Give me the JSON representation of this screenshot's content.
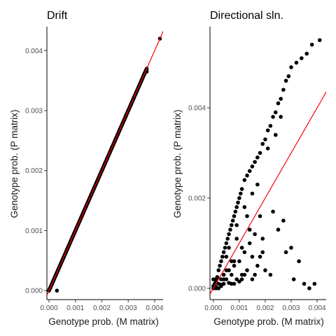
{
  "chart_data": [
    {
      "type": "scatter",
      "title": "Drift",
      "xlabel": "Genotype prob. (M matrix)",
      "ylabel": "Genotype prob. (P matrix)",
      "xlim": [
        -8e-05,
        0.00432
      ],
      "ylim": [
        -0.00015,
        0.0044
      ],
      "xticks": [
        "0.000",
        "0.001",
        "0.002",
        "0.003",
        "0.004"
      ],
      "yticks": [
        "0.000",
        "0.001",
        "0.002",
        "0.003",
        "0.004"
      ],
      "xtick_values": [
        0,
        0.001,
        0.002,
        0.003,
        0.004
      ],
      "ytick_values": [
        0,
        0.001,
        0.002,
        0.003,
        0.004
      ],
      "reference_line": {
        "type": "y=x",
        "color": "#ff0000"
      },
      "grid": false,
      "points": {
        "x": [
          0.0,
          2e-05,
          5e-05,
          0.0001,
          0.00015,
          0.0002,
          0.00025,
          0.0003,
          0.00035,
          0.0004,
          0.00045,
          0.0005,
          0.00055,
          0.0006,
          0.00065,
          0.0007,
          0.00075,
          0.0008,
          0.00085,
          0.0009,
          0.00095,
          0.001,
          0.00105,
          0.0011,
          0.00115,
          0.0012,
          0.00125,
          0.0013,
          0.00135,
          0.0014,
          0.00145,
          0.0015,
          0.00155,
          0.0016,
          0.00165,
          0.0017,
          0.00175,
          0.0018,
          0.00185,
          0.0019,
          0.00195,
          0.002,
          0.00205,
          0.0021,
          0.00215,
          0.0022,
          0.0023,
          0.0024,
          0.0025,
          0.00255,
          0.0026,
          0.0027,
          0.0028,
          0.00285,
          0.0029,
          0.003,
          0.0031,
          0.0032,
          0.0033,
          0.0034,
          0.0035,
          0.0036,
          0.0037,
          0.0042,
          0.0003
        ],
        "y": [
          0.0,
          2e-05,
          5e-05,
          0.0001,
          0.00015,
          0.0002,
          0.00025,
          0.0003,
          0.00035,
          0.0004,
          0.00045,
          0.0005,
          0.00055,
          0.0006,
          0.00065,
          0.0007,
          0.00075,
          0.0008,
          0.00085,
          0.0009,
          0.00095,
          0.001,
          0.00105,
          0.0011,
          0.00115,
          0.0012,
          0.00125,
          0.0013,
          0.00135,
          0.0014,
          0.00145,
          0.0015,
          0.00155,
          0.0016,
          0.00165,
          0.0017,
          0.00175,
          0.0018,
          0.00185,
          0.0019,
          0.00195,
          0.002,
          0.00205,
          0.0021,
          0.00215,
          0.0022,
          0.0023,
          0.0024,
          0.0025,
          0.00255,
          0.0026,
          0.0027,
          0.0028,
          0.00285,
          0.0029,
          0.003,
          0.0031,
          0.0032,
          0.0033,
          0.0034,
          0.0035,
          0.0036,
          0.00365,
          0.0042,
          0.0
        ]
      }
    },
    {
      "type": "scatter",
      "title": "Directional sln.",
      "xlabel": "Genotype prob. (M matrix)",
      "ylabel": "Genotype prob. (P matrix)",
      "xlim": [
        -0.00013,
        0.00435
      ],
      "ylim": [
        -0.00025,
        0.0058
      ],
      "xticks": [
        "0.000",
        "0.001",
        "0.002",
        "0.003",
        "0.004"
      ],
      "yticks": [
        "0.000",
        "0.002",
        "0.004"
      ],
      "xtick_values": [
        0,
        0.001,
        0.002,
        0.003,
        0.004
      ],
      "ytick_values": [
        0,
        0.002,
        0.004
      ],
      "reference_line": {
        "type": "y=x",
        "color": "#ff0000"
      },
      "grid": false,
      "points": {
        "x": [
          0.0,
          0.0,
          5e-05,
          0.0001,
          0.0001,
          0.00015,
          0.0002,
          0.0002,
          0.00025,
          0.0003,
          0.0003,
          0.00035,
          0.0004,
          0.0004,
          0.00045,
          0.0005,
          0.0005,
          0.00055,
          0.0006,
          0.0006,
          0.00065,
          0.0007,
          0.0007,
          0.00075,
          0.0008,
          0.0008,
          0.00085,
          0.0009,
          0.0009,
          0.00095,
          0.001,
          0.001,
          0.00105,
          0.0011,
          0.0011,
          0.0012,
          0.0012,
          0.0013,
          0.0013,
          0.0014,
          0.0014,
          0.0015,
          0.0015,
          0.0016,
          0.0016,
          0.0017,
          0.0017,
          0.0018,
          0.0018,
          0.0019,
          0.0019,
          0.002,
          0.002,
          0.0021,
          0.0022,
          0.0023,
          0.0024,
          0.0025,
          0.0026,
          0.0027,
          0.0028,
          0.0029,
          0.003,
          0.0032,
          0.0034,
          0.0036,
          0.0038,
          0.0041,
          0.0006,
          0.0009,
          0.0012,
          0.0015,
          0.0008,
          0.0011,
          0.0007,
          0.0004,
          0.0002,
          0.0001,
          0.0,
          0.0003,
          0.0005,
          0.0013,
          0.0017,
          0.0021,
          0.0024,
          0.0026,
          0.0018,
          0.0025,
          0.0027,
          0.003,
          0.0033,
          0.0009,
          0.0014,
          0.0016,
          0.0019,
          0.0028,
          0.0022,
          0.0005,
          0.0008,
          0.0011,
          0.0023,
          0.0031,
          0.0035,
          0.0037,
          0.0039,
          0.0001,
          0.0003,
          0.0006,
          0.001,
          0.0012,
          0.0015,
          0.0004,
          0.0007
        ],
        "y": [
          0.0,
          5e-05,
          0.0001,
          0.0002,
          0.0,
          0.00025,
          0.0004,
          0.0001,
          0.0005,
          0.0006,
          0.0002,
          0.0007,
          0.0008,
          0.0003,
          0.0009,
          0.001,
          0.0002,
          0.0011,
          0.0012,
          0.0004,
          0.0013,
          0.0014,
          0.0001,
          0.0015,
          0.0016,
          0.0005,
          0.0017,
          0.0018,
          0.0002,
          0.0019,
          0.002,
          0.0006,
          0.0021,
          0.0022,
          0.0003,
          0.0024,
          0.0008,
          0.0025,
          0.0004,
          0.0026,
          0.001,
          0.0027,
          0.0002,
          0.0028,
          0.0012,
          0.0029,
          0.0005,
          0.003,
          0.0007,
          0.0032,
          0.0011,
          0.0033,
          0.0004,
          0.0035,
          0.0036,
          0.0038,
          0.0039,
          0.0041,
          0.0042,
          0.0044,
          0.0046,
          0.0047,
          0.0049,
          0.005,
          0.0051,
          0.0052,
          0.0054,
          0.0055,
          0.0009,
          0.0014,
          0.0018,
          0.0021,
          0.0006,
          0.0009,
          0.0003,
          0.0001,
          0.0,
          0.00015,
          0.0002,
          5e-05,
          0.0007,
          0.0016,
          0.0023,
          0.0031,
          0.0034,
          0.0038,
          0.0016,
          0.0013,
          0.0015,
          0.0009,
          0.0006,
          0.0011,
          0.0013,
          0.0003,
          0.0008,
          0.0008,
          0.0003,
          0.0004,
          0.0001,
          0.0002,
          0.0017,
          0.0002,
          0.0001,
          0.0,
          0.0001,
          3e-05,
          8e-05,
          0.00012,
          0.00015,
          0.0003,
          0.0007,
          0.0002,
          0.0006
        ]
      }
    }
  ]
}
